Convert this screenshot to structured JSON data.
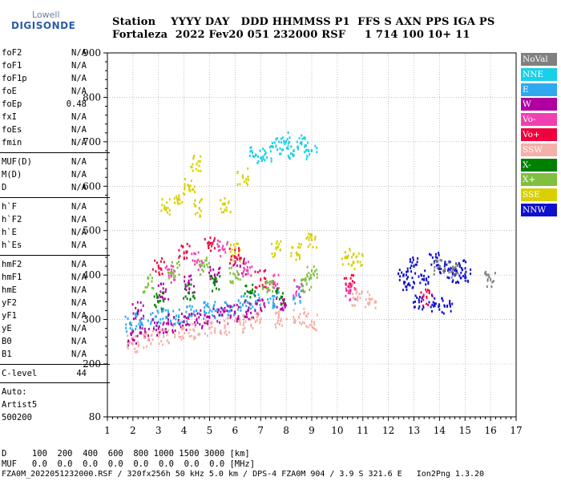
{
  "logo": {
    "top": "Lowell",
    "bottom": "DIGISONDE"
  },
  "header": {
    "line1": "Station    YYYY DAY   DDD HHMMSS P1  FFS S AXN PPS IGA PS",
    "line2": "Fortaleza  2022 Fev20 051 232000 RSF     1 714 100 10+ 11"
  },
  "params": [
    {
      "name": "foF2",
      "value": "N/A"
    },
    {
      "name": "foF1",
      "value": "N/A"
    },
    {
      "name": "foF1p",
      "value": "N/A"
    },
    {
      "name": "foE",
      "value": "N/A"
    },
    {
      "name": "foEp",
      "value": "0.48"
    },
    {
      "name": "fxI",
      "value": "N/A"
    },
    {
      "name": "foEs",
      "value": "N/A"
    },
    {
      "name": "fmin",
      "value": "N/A"
    },
    {
      "name": "MUF(D)",
      "value": "N/A"
    },
    {
      "name": "M(D)",
      "value": "N/A"
    },
    {
      "name": "D",
      "value": "N/A"
    },
    {
      "name": "h`F",
      "value": "N/A"
    },
    {
      "name": "h`F2",
      "value": "N/A"
    },
    {
      "name": "h`E",
      "value": "N/A"
    },
    {
      "name": "h`Es",
      "value": "N/A"
    },
    {
      "name": "hmF2",
      "value": "N/A"
    },
    {
      "name": "hmF1",
      "value": "N/A"
    },
    {
      "name": "hmE",
      "value": "N/A"
    },
    {
      "name": "yF2",
      "value": "N/A"
    },
    {
      "name": "yF1",
      "value": "N/A"
    },
    {
      "name": "yE",
      "value": "N/A"
    },
    {
      "name": "B0",
      "value": "N/A"
    },
    {
      "name": "B1",
      "value": "N/A"
    },
    {
      "name": "C-level",
      "value": "44"
    }
  ],
  "auto": {
    "line1": "Auto:",
    "line2": "Artist5",
    "line3": "500200"
  },
  "footer": {
    "d_line": "D     100  200  400  600  800 1000 1500 3000 [km]",
    "muf_line": "MUF   0.0  0.0  0.0  0.0  0.0  0.0  0.0  0.0 [MHz]",
    "file_line": "FZA0M_2022051232000.RSF / 320fx256h 50 kHz 5.0 km / DPS-4 FZA0M 904 / 3.9 S 321.6 E   Ion2Png 1.3.20"
  },
  "legend": [
    {
      "label": "NoVal",
      "color": "#808080"
    },
    {
      "label": "NNE",
      "color": "#18d0e8"
    },
    {
      "label": "E",
      "color": "#30a8f0"
    },
    {
      "label": "W",
      "color": "#b000a0"
    },
    {
      "label": "Vo-",
      "color": "#f040b0"
    },
    {
      "label": "Vo+",
      "color": "#f0003c"
    },
    {
      "label": "SSW",
      "color": "#f4b0a8"
    },
    {
      "label": "X-",
      "color": "#008000"
    },
    {
      "label": "X+",
      "color": "#80c040"
    },
    {
      "label": "SSE",
      "color": "#d8d000"
    },
    {
      "label": "NNW",
      "color": "#1010d0"
    }
  ],
  "chart_data": {
    "type": "scatter",
    "xlim": [
      1,
      17
    ],
    "ylim": [
      80,
      900
    ],
    "x_ticks": [
      "1",
      "2",
      "3",
      "4",
      "5",
      "6",
      "7",
      "8",
      "9",
      "10",
      "11",
      "12",
      "13",
      "14",
      "15",
      "16",
      "17"
    ],
    "y_ticks": [
      "80",
      "200",
      "300",
      "400",
      "500",
      "600",
      "700",
      "800",
      "900"
    ],
    "grid": true,
    "series": [
      {
        "name": "E",
        "color": "#30a8f0",
        "points": [
          [
            1.9,
            290
          ],
          [
            2.3,
            295
          ],
          [
            2.8,
            300
          ],
          [
            3.3,
            305
          ],
          [
            3.8,
            308
          ],
          [
            4.3,
            312
          ],
          [
            4.8,
            318
          ],
          [
            5.3,
            322
          ],
          [
            5.8,
            328
          ],
          [
            6.3,
            333
          ],
          [
            6.8,
            338
          ],
          [
            7.5,
            345
          ],
          [
            8.5,
            355
          ]
        ]
      },
      {
        "name": "W",
        "color": "#b000a0",
        "points": [
          [
            2.0,
            255
          ],
          [
            2.5,
            270
          ],
          [
            3.0,
            280
          ],
          [
            3.5,
            290
          ],
          [
            4.0,
            295
          ],
          [
            4.5,
            300
          ],
          [
            5.0,
            305
          ],
          [
            5.5,
            310
          ],
          [
            6.0,
            315
          ],
          [
            6.5,
            320
          ],
          [
            7.0,
            325
          ],
          [
            7.8,
            335
          ],
          [
            2.2,
            320
          ],
          [
            3.2,
            360
          ],
          [
            4.2,
            380
          ],
          [
            5.2,
            400
          ],
          [
            6.2,
            420
          ]
        ]
      },
      {
        "name": "SSW",
        "color": "#f4b0a8",
        "points": [
          [
            2.0,
            245
          ],
          [
            2.6,
            255
          ],
          [
            3.2,
            262
          ],
          [
            3.8,
            270
          ],
          [
            4.4,
            275
          ],
          [
            5.0,
            280
          ],
          [
            5.6,
            285
          ],
          [
            6.2,
            290
          ],
          [
            6.8,
            295
          ],
          [
            7.8,
            300
          ],
          [
            8.5,
            305
          ],
          [
            9.0,
            295
          ],
          [
            10.8,
            350
          ],
          [
            11.3,
            345
          ]
        ]
      },
      {
        "name": "SSE",
        "color": "#d8d000",
        "points": [
          [
            3.3,
            550
          ],
          [
            3.8,
            575
          ],
          [
            4.2,
            600
          ],
          [
            4.6,
            550
          ],
          [
            5.6,
            560
          ],
          [
            6.3,
            620
          ],
          [
            7.6,
            460
          ],
          [
            8.4,
            450
          ],
          [
            9.0,
            480
          ],
          [
            10.4,
            440
          ],
          [
            10.8,
            430
          ],
          [
            6.0,
            450
          ],
          [
            4.5,
            650
          ]
        ]
      },
      {
        "name": "NNE",
        "color": "#18d0e8",
        "points": [
          [
            7.6,
            690
          ],
          [
            8.0,
            700
          ],
          [
            8.3,
            680
          ],
          [
            8.6,
            695
          ],
          [
            9.0,
            680
          ],
          [
            6.8,
            670
          ],
          [
            7.2,
            675
          ]
        ]
      },
      {
        "name": "Vo+",
        "color": "#f0003c",
        "points": [
          [
            3.0,
            420
          ],
          [
            4.0,
            450
          ],
          [
            5.0,
            470
          ],
          [
            6.0,
            440
          ],
          [
            7.0,
            390
          ],
          [
            10.5,
            380
          ],
          [
            13.5,
            350
          ]
        ]
      },
      {
        "name": "Vo-",
        "color": "#f040b0",
        "points": [
          [
            3.5,
            400
          ],
          [
            4.5,
            430
          ],
          [
            5.5,
            460
          ],
          [
            6.5,
            410
          ],
          [
            7.5,
            380
          ],
          [
            8.5,
            370
          ],
          [
            10.5,
            360
          ]
        ]
      },
      {
        "name": "X-",
        "color": "#008000",
        "points": [
          [
            3.0,
            340
          ],
          [
            4.2,
            360
          ],
          [
            5.2,
            380
          ],
          [
            6.6,
            360
          ],
          [
            7.8,
            350
          ]
        ]
      },
      {
        "name": "X+",
        "color": "#80c040",
        "points": [
          [
            2.6,
            380
          ],
          [
            3.6,
            410
          ],
          [
            4.8,
            420
          ],
          [
            6.0,
            400
          ],
          [
            7.3,
            370
          ],
          [
            8.8,
            380
          ],
          [
            9.0,
            410
          ]
        ]
      },
      {
        "name": "NNW",
        "color": "#1010d0",
        "points": [
          [
            12.6,
            400
          ],
          [
            13.0,
            420
          ],
          [
            13.4,
            390
          ],
          [
            13.8,
            430
          ],
          [
            14.2,
            410
          ],
          [
            14.6,
            400
          ],
          [
            15.0,
            395
          ],
          [
            13.2,
            340
          ],
          [
            13.8,
            335
          ],
          [
            14.3,
            330
          ],
          [
            12.8,
            380
          ],
          [
            14.8,
            420
          ]
        ]
      },
      {
        "name": "NoVal",
        "color": "#808080",
        "points": [
          [
            14.0,
            420
          ],
          [
            14.5,
            410
          ],
          [
            16.0,
            390
          ]
        ]
      }
    ]
  }
}
